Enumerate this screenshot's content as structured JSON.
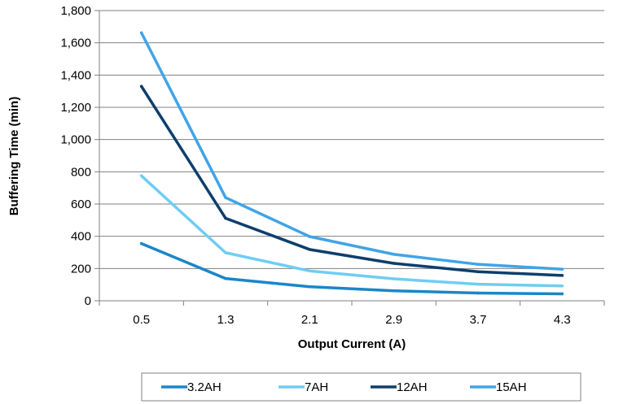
{
  "chart_data": {
    "type": "line",
    "categories": [
      "0.5",
      "1.3",
      "2.1",
      "2.9",
      "3.7",
      "4.3"
    ],
    "series": [
      {
        "name": "3.2AH",
        "color": "#1a86c8",
        "values": [
          355,
          138,
          87,
          62,
          48,
          43
        ]
      },
      {
        "name": "7AH",
        "color": "#6fcdf2",
        "values": [
          775,
          298,
          185,
          136,
          103,
          92
        ]
      },
      {
        "name": "12AH",
        "color": "#0e3f6c",
        "values": [
          1330,
          512,
          318,
          232,
          180,
          157
        ]
      },
      {
        "name": "15AH",
        "color": "#3fa4e8",
        "values": [
          1662,
          640,
          398,
          288,
          226,
          196
        ]
      }
    ],
    "xlabel": "Output Current (A)",
    "ylabel": "Buffering Time (min)",
    "ylim": [
      0,
      1800
    ],
    "yticks": [
      0,
      200,
      400,
      600,
      800,
      1000,
      1200,
      1400,
      1600,
      1800
    ],
    "ytick_labels": [
      "0",
      "200",
      "400",
      "600",
      "800",
      "1,000",
      "1,200",
      "1,400",
      "1,600",
      "1,800"
    ],
    "grid": true,
    "legend_position": "bottom"
  }
}
